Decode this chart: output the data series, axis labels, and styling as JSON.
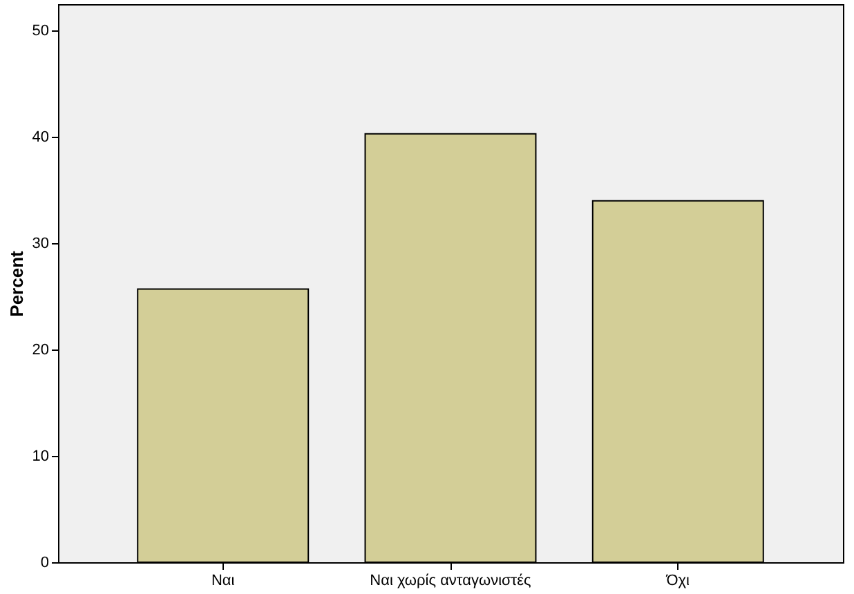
{
  "chart_data": {
    "type": "bar",
    "ylabel": "Percent",
    "categories": [
      "Ναι",
      "Ναι χωρίς ανταγωνιστές",
      "Όχι"
    ],
    "values": [
      25.7,
      40.3,
      34.0
    ],
    "color": "#d3ce97",
    "ylim": [
      0,
      52.5
    ],
    "yticks": [
      0,
      10,
      20,
      30,
      40,
      50
    ],
    "grid": false
  }
}
